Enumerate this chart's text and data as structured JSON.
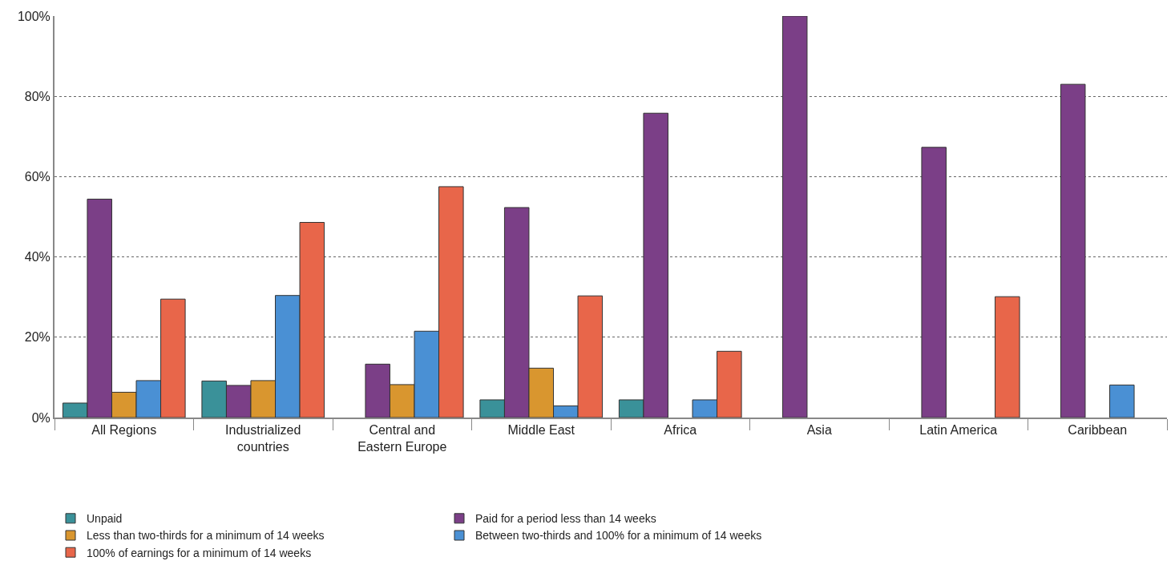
{
  "chart_data": {
    "type": "bar",
    "categories": [
      "All Regions",
      "Industrialized countries",
      "Central and Eastern Europe",
      "Middle East",
      "Africa",
      "Asia",
      "Latin America",
      "Caribbean"
    ],
    "series": [
      {
        "name": "Unpaid",
        "color": "#3a9199",
        "values": [
          3.6,
          9.1,
          null,
          4.4,
          4.4,
          null,
          null,
          null
        ]
      },
      {
        "name": "Paid for a period less than 14 weeks",
        "color": "#7b3f87",
        "values": [
          54.4,
          8.0,
          13.3,
          52.3,
          75.8,
          100,
          67.3,
          83
        ]
      },
      {
        "name": "Less than two-thirds for a minimum of 14 weeks",
        "color": "#d9962f",
        "values": [
          6.3,
          9.2,
          8.2,
          12.3,
          null,
          null,
          null,
          null
        ]
      },
      {
        "name": "Between two-thirds and 100% for a minimum of 14 weeks",
        "color": "#4a90d4",
        "values": [
          9.2,
          30.4,
          21.5,
          2.9,
          4.4,
          null,
          null,
          8.1
        ]
      },
      {
        "name": "100% of earnings for a minimum of 14 weeks",
        "color": "#e8664a",
        "values": [
          29.5,
          48.6,
          57.5,
          30.3,
          16.5,
          null,
          30.1,
          null
        ]
      }
    ],
    "ylim": [
      0,
      100
    ],
    "yticks": [
      {
        "value": 0,
        "label": "0%"
      },
      {
        "value": 20,
        "label": "20%"
      },
      {
        "value": 40,
        "label": "40%"
      },
      {
        "value": 60,
        "label": "60%"
      },
      {
        "value": 80,
        "label": "80%"
      },
      {
        "value": 100,
        "label": "100%"
      }
    ],
    "grid": "y",
    "legend": "bottom"
  }
}
